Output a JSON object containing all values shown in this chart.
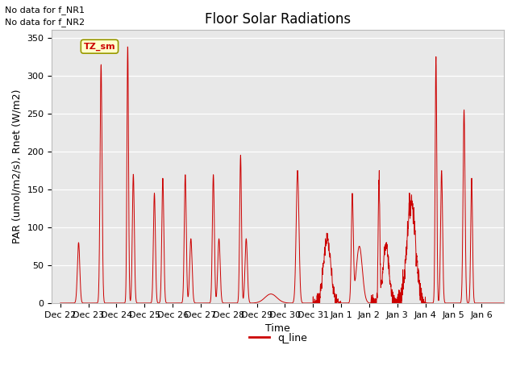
{
  "title": "Floor Solar Radiations",
  "xlabel": "Time",
  "ylabel": "PAR (umol/m2/s), Rnet (W/m2)",
  "no_data_text_1": "No data for f_NR1",
  "no_data_text_2": "No data for f_NR2",
  "legend_label": "q_line",
  "legend_color": "#cc0000",
  "tz_sm_label": "TZ_sm",
  "tz_sm_bg": "#ffffcc",
  "tz_sm_border": "#aaaaaa",
  "line_color": "#cc0000",
  "bg_color": "#e8e8e8",
  "ylim": [
    0,
    360
  ],
  "yticks": [
    0,
    50,
    100,
    150,
    200,
    250,
    300,
    350
  ],
  "xtick_labels": [
    "Dec 22",
    "Dec 23",
    "Dec 24",
    "Dec 25",
    "Dec 26",
    "Dec 27",
    "Dec 28",
    "Dec 29",
    "Dec 30",
    "Dec 31",
    "Jan 1",
    "Jan 2",
    "Jan 3",
    "Jan 4",
    "Jan 5",
    "Jan 6"
  ],
  "title_fontsize": 12,
  "axis_label_fontsize": 9,
  "tick_fontsize": 8,
  "nodata_fontsize": 8,
  "tz_fontsize": 8
}
